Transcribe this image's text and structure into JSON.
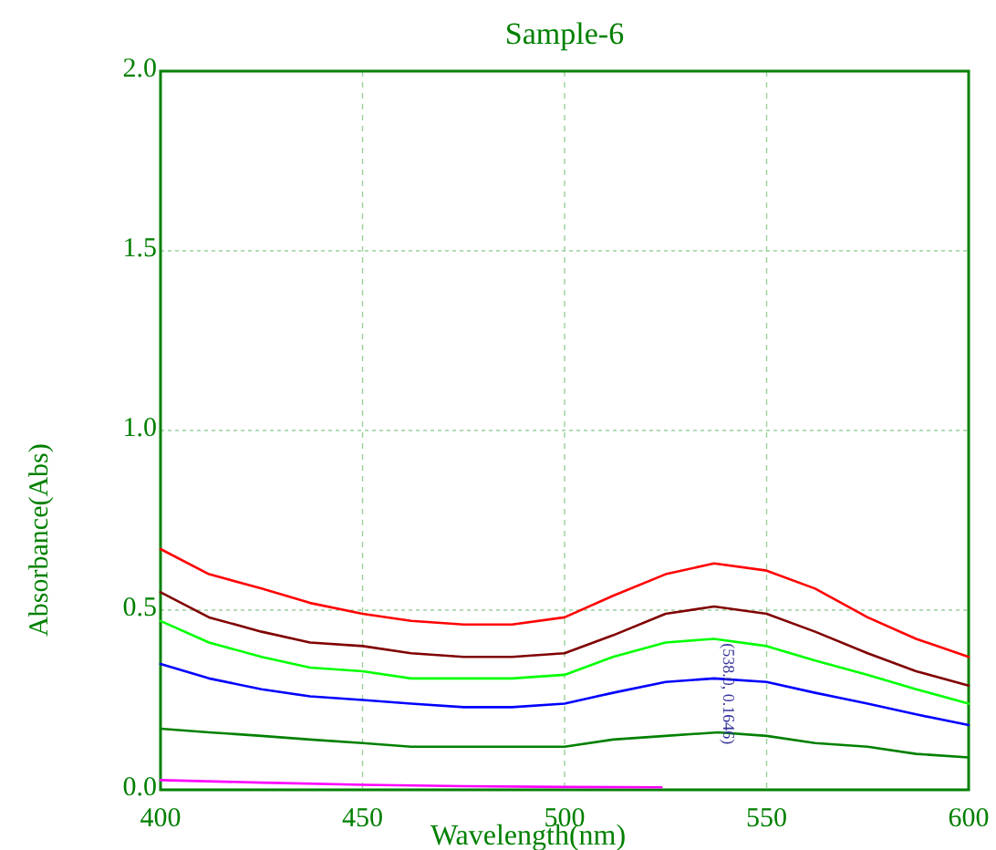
{
  "chart_data": {
    "type": "line",
    "title": "Sample-6",
    "xlabel": "Wavelength(nm)",
    "ylabel": "Absorbance(Abs)",
    "xlim": [
      400,
      600
    ],
    "xticks": [
      400,
      450,
      500,
      550,
      600
    ],
    "ylim": [
      0,
      2
    ],
    "yticks": [
      {
        "value": 0,
        "label": "0.0"
      },
      {
        "value": 0.5,
        "label": "0.5"
      },
      {
        "value": 1,
        "label": "1.0"
      },
      {
        "value": 1.5,
        "label": "1.5"
      },
      {
        "value": 2,
        "label": "2.0"
      }
    ],
    "grid": true,
    "line_style": "solid",
    "marker": "none",
    "annotations": [
      {
        "text": "(538.0, 0.1646)",
        "x": 538,
        "y": 0.1646
      }
    ],
    "series": [
      {
        "color": "#ff0000",
        "x": [
          400,
          412,
          425,
          437,
          450,
          462,
          475,
          487,
          500,
          512,
          525,
          537,
          550,
          562,
          575,
          587,
          600
        ],
        "values": [
          0.67,
          0.6,
          0.56,
          0.52,
          0.49,
          0.47,
          0.46,
          0.46,
          0.48,
          0.54,
          0.6,
          0.63,
          0.61,
          0.56,
          0.48,
          0.42,
          0.37
        ]
      },
      {
        "color": "#800000",
        "x": [
          400,
          412,
          425,
          437,
          450,
          462,
          475,
          487,
          500,
          512,
          525,
          537,
          550,
          562,
          575,
          587,
          600
        ],
        "values": [
          0.55,
          0.48,
          0.44,
          0.41,
          0.4,
          0.38,
          0.37,
          0.37,
          0.38,
          0.43,
          0.49,
          0.51,
          0.49,
          0.44,
          0.38,
          0.33,
          0.29
        ]
      },
      {
        "color": "#00ff00",
        "x": [
          400,
          412,
          425,
          437,
          450,
          462,
          475,
          487,
          500,
          512,
          525,
          537,
          550,
          562,
          575,
          587,
          600
        ],
        "values": [
          0.47,
          0.41,
          0.37,
          0.34,
          0.33,
          0.31,
          0.31,
          0.31,
          0.32,
          0.37,
          0.41,
          0.42,
          0.4,
          0.36,
          0.32,
          0.28,
          0.24
        ]
      },
      {
        "color": "#0000ff",
        "x": [
          400,
          412,
          425,
          437,
          450,
          462,
          475,
          487,
          500,
          512,
          525,
          537,
          550,
          562,
          575,
          587,
          600
        ],
        "values": [
          0.35,
          0.31,
          0.28,
          0.26,
          0.25,
          0.24,
          0.23,
          0.23,
          0.24,
          0.27,
          0.3,
          0.31,
          0.3,
          0.27,
          0.24,
          0.21,
          0.18
        ]
      },
      {
        "color": "#008000",
        "x": [
          400,
          412,
          425,
          437,
          450,
          462,
          475,
          487,
          500,
          512,
          525,
          538,
          550,
          562,
          575,
          587,
          600
        ],
        "values": [
          0.17,
          0.16,
          0.15,
          0.14,
          0.13,
          0.12,
          0.12,
          0.12,
          0.12,
          0.14,
          0.15,
          0.16,
          0.15,
          0.13,
          0.12,
          0.1,
          0.09
        ]
      },
      {
        "color": "#ff00ff",
        "x": [
          400,
          425,
          450,
          475,
          500,
          524
        ],
        "values": [
          0.027,
          0.02,
          0.014,
          0.01,
          0.008,
          0.007
        ]
      }
    ]
  }
}
